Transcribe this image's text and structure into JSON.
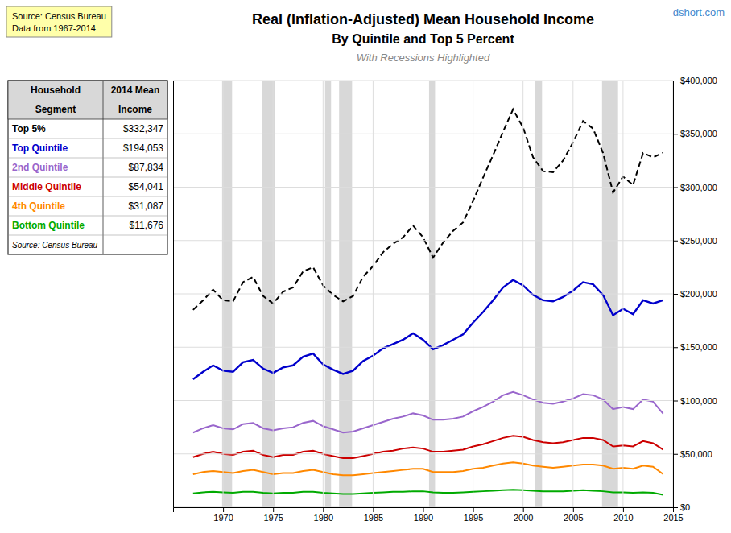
{
  "chart_data": {
    "type": "line",
    "title": "Real (Inflation-Adjusted) Mean Household Income",
    "subtitle": [
      "By Quintile and Top 5 Percent",
      "With Recessions Highlighted"
    ],
    "annotations": [
      "Source: Census Bureau",
      "Data from 1967-2014",
      "dshort.com",
      "Household",
      "Segment",
      "2014 Mean",
      "Income",
      "$332,347",
      "$194,053",
      "$87,834",
      "$54,041",
      "$31,087",
      "$11,676",
      "Source: Census Bureau"
    ],
    "x": [
      1967,
      1968,
      1969,
      1970,
      1971,
      1972,
      1973,
      1974,
      1975,
      1976,
      1977,
      1978,
      1979,
      1980,
      1981,
      1982,
      1983,
      1984,
      1985,
      1986,
      1987,
      1988,
      1989,
      1990,
      1991,
      1992,
      1993,
      1994,
      1995,
      1996,
      1997,
      1998,
      1999,
      2000,
      2001,
      2002,
      2003,
      2004,
      2005,
      2006,
      2007,
      2008,
      2009,
      2010,
      2011,
      2012,
      2013,
      2014
    ],
    "series": [
      {
        "name": "Top 5%",
        "color": "#000000",
        "line_style": "dashed",
        "values": [
          185000,
          194000,
          204000,
          194000,
          193000,
          211000,
          216000,
          198000,
          191000,
          202000,
          206000,
          221000,
          225000,
          208000,
          199000,
          193000,
          198000,
          216000,
          226000,
          239000,
          247000,
          253000,
          264000,
          253000,
          234000,
          248000,
          259000,
          267000,
          287000,
          309000,
          330000,
          352000,
          373000,
          356000,
          328000,
          315000,
          314000,
          325000,
          342000,
          362000,
          355000,
          332000,
          295000,
          310000,
          302000,
          332000,
          328000,
          332347
        ]
      },
      {
        "name": "Top Quintile",
        "color": "#0000CC",
        "values": [
          120000,
          127000,
          133000,
          128000,
          127000,
          136000,
          138000,
          130000,
          126000,
          131000,
          133000,
          141000,
          144000,
          134000,
          129000,
          125000,
          128000,
          137000,
          142000,
          149000,
          153000,
          157000,
          163000,
          157000,
          148000,
          152000,
          157000,
          162000,
          173000,
          183000,
          194000,
          206000,
          213000,
          208000,
          199000,
          194000,
          193000,
          197000,
          203000,
          211000,
          209000,
          199000,
          180000,
          186000,
          181000,
          194000,
          191000,
          194053
        ]
      },
      {
        "name": "2nd Quintile",
        "color": "#9966CC",
        "values": [
          70000,
          74000,
          77000,
          74000,
          73000,
          78000,
          79000,
          74000,
          72000,
          74000,
          75000,
          79000,
          81000,
          76000,
          73000,
          70000,
          71000,
          74000,
          77000,
          80000,
          83000,
          85000,
          88000,
          86000,
          82000,
          82000,
          83000,
          85000,
          90000,
          94000,
          99000,
          105000,
          108000,
          105000,
          101000,
          98000,
          97000,
          99000,
          102000,
          106000,
          105000,
          101000,
          92000,
          94000,
          92000,
          101000,
          99000,
          87834
        ]
      },
      {
        "name": "Middle Quintile",
        "color": "#CC0000",
        "values": [
          47000,
          50000,
          52000,
          50000,
          49000,
          52000,
          53000,
          49000,
          47000,
          49000,
          49000,
          52000,
          53000,
          50000,
          48000,
          46000,
          46000,
          48000,
          50000,
          52000,
          53000,
          55000,
          56000,
          55000,
          52000,
          52000,
          53000,
          54000,
          57000,
          59000,
          62000,
          65000,
          67000,
          66000,
          63000,
          61000,
          60000,
          61000,
          63000,
          65000,
          65000,
          63000,
          57000,
          58000,
          57000,
          62000,
          60000,
          54041
        ]
      },
      {
        "name": "4th Quintile",
        "color": "#FF8800",
        "values": [
          31000,
          33000,
          34000,
          33000,
          32000,
          34000,
          35000,
          33000,
          31000,
          32000,
          32000,
          34000,
          35000,
          33000,
          31000,
          30000,
          30000,
          31000,
          32000,
          33000,
          34000,
          35000,
          36000,
          36000,
          33000,
          33000,
          33000,
          34000,
          36000,
          37000,
          39000,
          41000,
          42000,
          41000,
          39000,
          38000,
          37000,
          38000,
          39000,
          40000,
          40000,
          39000,
          36000,
          37000,
          36000,
          39000,
          38000,
          31087
        ]
      },
      {
        "name": "Bottom Quintile",
        "color": "#00AA00",
        "values": [
          13000,
          14000,
          14500,
          14000,
          13500,
          14500,
          14500,
          13500,
          13000,
          13500,
          13500,
          14500,
          14500,
          13500,
          13000,
          12500,
          12500,
          13000,
          13500,
          14000,
          14500,
          14500,
          15000,
          15000,
          14000,
          13500,
          13500,
          14000,
          14500,
          15000,
          15500,
          16000,
          16500,
          16000,
          15500,
          15000,
          15000,
          15000,
          15500,
          16000,
          15500,
          15000,
          14000,
          14000,
          13500,
          14000,
          13500,
          11676
        ]
      }
    ],
    "recessions": [
      [
        1969.9,
        1970.9
      ],
      [
        1973.9,
        1975.2
      ],
      [
        1980.2,
        1980.8
      ],
      [
        1981.6,
        1982.9
      ],
      [
        1990.6,
        1991.2
      ],
      [
        2001.2,
        2001.9
      ],
      [
        2007.9,
        2009.5
      ]
    ],
    "xlim": [
      1965,
      2015
    ],
    "xticks": [
      1970,
      1975,
      1980,
      1985,
      1990,
      1995,
      2000,
      2005,
      2010,
      2015
    ],
    "ylim": [
      0,
      400000
    ],
    "yticks": [
      {
        "value": 0,
        "label": "$0"
      },
      {
        "value": 50000,
        "label": "$50,000"
      },
      {
        "value": 100000,
        "label": "$100,000"
      },
      {
        "value": 150000,
        "label": "$150,000"
      },
      {
        "value": 200000,
        "label": "$200,000"
      },
      {
        "value": 250000,
        "label": "$250,000"
      },
      {
        "value": 300000,
        "label": "$300,000"
      },
      {
        "value": 350000,
        "label": "$350,000"
      },
      {
        "value": 400000,
        "label": "$400,000"
      }
    ],
    "grid": true,
    "legend": "upper left"
  }
}
